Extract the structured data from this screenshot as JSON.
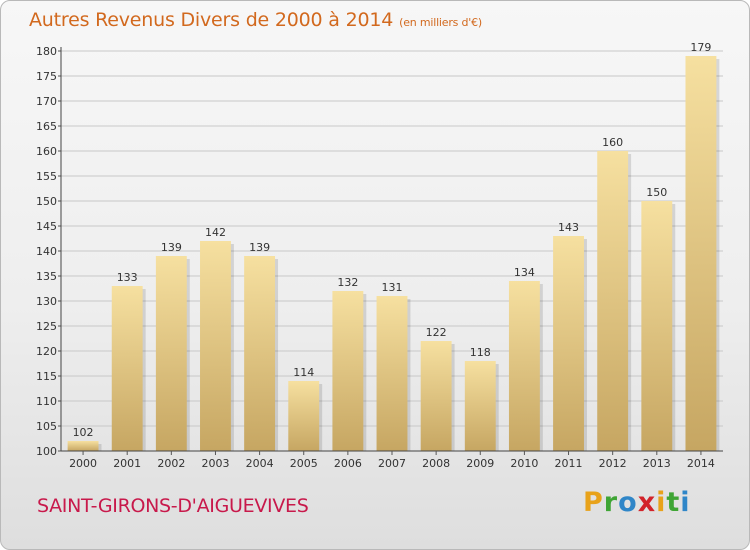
{
  "title": "Autres Revenus Divers de 2000 à 2014",
  "title_unit": "(en milliers d'€)",
  "commune": "SAINT-GIRONS-D'AIGUEVIVES",
  "logo": {
    "letters": [
      "P",
      "r",
      "o",
      "x",
      "i",
      "t",
      "i"
    ],
    "colors": [
      "#e8a21a",
      "#3fa535",
      "#2f86c8",
      "#d2232a",
      "#e8a21a",
      "#3fa535",
      "#2f86c8"
    ]
  },
  "colors": {
    "title": "#d2691e",
    "commune": "#c8194b",
    "bar_light": "#f6e0a0",
    "bar_dark": "#c6a662",
    "grid": "#c8c8c8"
  },
  "chart_data": {
    "type": "bar",
    "categories": [
      "2000",
      "2001",
      "2002",
      "2003",
      "2004",
      "2005",
      "2006",
      "2007",
      "2008",
      "2009",
      "2010",
      "2011",
      "2012",
      "2013",
      "2014"
    ],
    "values": [
      102,
      133,
      139,
      142,
      139,
      114,
      132,
      131,
      122,
      118,
      134,
      143,
      160,
      150,
      179
    ],
    "ylim": [
      100,
      180
    ],
    "yticks": [
      100,
      105,
      110,
      115,
      120,
      125,
      130,
      135,
      140,
      145,
      150,
      155,
      160,
      165,
      170,
      175,
      180
    ],
    "grid": true,
    "data_labels": true
  }
}
